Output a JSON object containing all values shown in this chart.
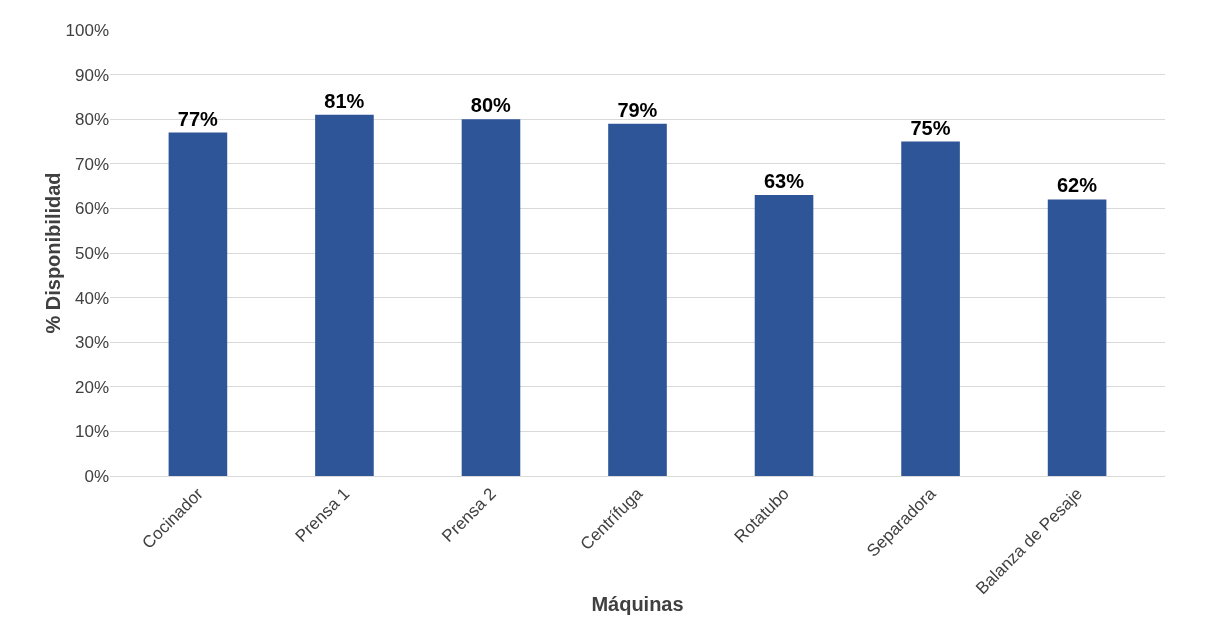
{
  "chart_data": {
    "type": "bar",
    "xlabel": "Máquinas",
    "ylabel": "% Disponibilidad",
    "categories": [
      "Cocinador",
      "Prensa 1",
      "Prensa 2",
      "Centrífuga",
      "Rotatubo",
      "Separadora",
      "Balanza de Pesaje"
    ],
    "values": [
      77,
      81,
      80,
      79,
      63,
      75,
      62
    ],
    "value_labels": [
      "77%",
      "81%",
      "80%",
      "79%",
      "63%",
      "75%",
      "62%"
    ],
    "color": "#2e5597",
    "ylim": [
      0,
      100
    ],
    "yticks": [
      {
        "value": 0,
        "label": "0%"
      },
      {
        "value": 10,
        "label": "10%"
      },
      {
        "value": 20,
        "label": "20%"
      },
      {
        "value": 30,
        "label": "30%"
      },
      {
        "value": 40,
        "label": "40%"
      },
      {
        "value": 50,
        "label": "50%"
      },
      {
        "value": 60,
        "label": "60%"
      },
      {
        "value": 70,
        "label": "70%"
      },
      {
        "value": 80,
        "label": "80%"
      },
      {
        "value": 90,
        "label": "90%"
      },
      {
        "value": 100,
        "label": "100%"
      }
    ],
    "grid": "y"
  }
}
